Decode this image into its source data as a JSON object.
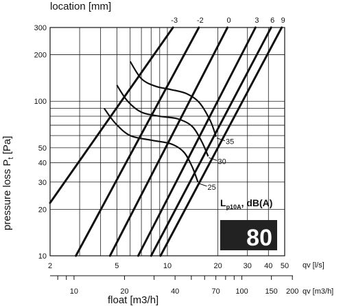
{
  "chart_data": {
    "type": "line",
    "title": "location [mm]",
    "ylabel": "pressure loss P",
    "ylabel_sub": "t",
    "ylabel_unit": " [Pa]",
    "xlabel": "float [m3/h]",
    "x_scale": "log",
    "y_scale": "log",
    "xlim_ls": [
      2,
      50
    ],
    "ylim": [
      10,
      300
    ],
    "grid": true,
    "y_ticks": [
      10,
      20,
      30,
      40,
      50,
      100,
      200,
      300
    ],
    "y_tick_labels": [
      "10",
      "20",
      "30",
      "40",
      "50",
      "100",
      "200",
      "300"
    ],
    "x_ticks_ls": [
      2,
      5,
      10,
      20,
      30,
      40,
      50
    ],
    "x_tick_labels_ls": [
      "2",
      "5",
      "10",
      "20",
      "30",
      "40",
      "50"
    ],
    "x_axis_ls_label": "qv [l/s]",
    "x_ticks_m3h": [
      10,
      20,
      40,
      70,
      100,
      150,
      200
    ],
    "x_tick_labels_m3h": [
      "10",
      "20",
      "40",
      "70",
      "100",
      "150",
      "200"
    ],
    "x_axis_m3h_label": "qv [m3/h]",
    "series": [
      {
        "name": "-3",
        "x": [
          2.0,
          10.8
        ],
        "y": [
          22.0,
          300
        ]
      },
      {
        "name": "-2",
        "x": [
          2.85,
          15.4
        ],
        "y": [
          10,
          300
        ]
      },
      {
        "name": "0",
        "x": [
          4.55,
          22.8
        ],
        "y": [
          10,
          300
        ]
      },
      {
        "name": "3",
        "x": [
          6.7,
          33.5
        ],
        "y": [
          10,
          300
        ]
      },
      {
        "name": "6",
        "x": [
          8.0,
          41.5
        ],
        "y": [
          10,
          300
        ]
      },
      {
        "name": "9",
        "x": [
          9.1,
          48.0
        ],
        "y": [
          10,
          300
        ]
      }
    ],
    "noise_curves": [
      {
        "level": "35",
        "x": [
          6.0,
          7.0,
          8.5,
          10.5,
          13.0,
          15.5,
          18.0,
          19.5
        ],
        "y": [
          181,
          140,
          125,
          119,
          112,
          98,
          75,
          59
        ]
      },
      {
        "name": "30",
        "level": "30",
        "x": [
          5.0,
          5.8,
          7.0,
          9.0,
          11.5,
          14.0,
          16.0,
          17.5
        ],
        "y": [
          127,
          100,
          85,
          80,
          77,
          69,
          55,
          44
        ]
      },
      {
        "name": "25",
        "level": "25",
        "x": [
          4.2,
          4.9,
          6.0,
          8.0,
          10.5,
          12.5,
          14.0,
          15.2
        ],
        "y": [
          90,
          72,
          60,
          56,
          53,
          47,
          38,
          30
        ]
      }
    ],
    "noise_legend_title": "L",
    "noise_legend_sub": "p10A",
    "noise_legend_unit": ", dB(A)",
    "highlight_value": "80"
  }
}
